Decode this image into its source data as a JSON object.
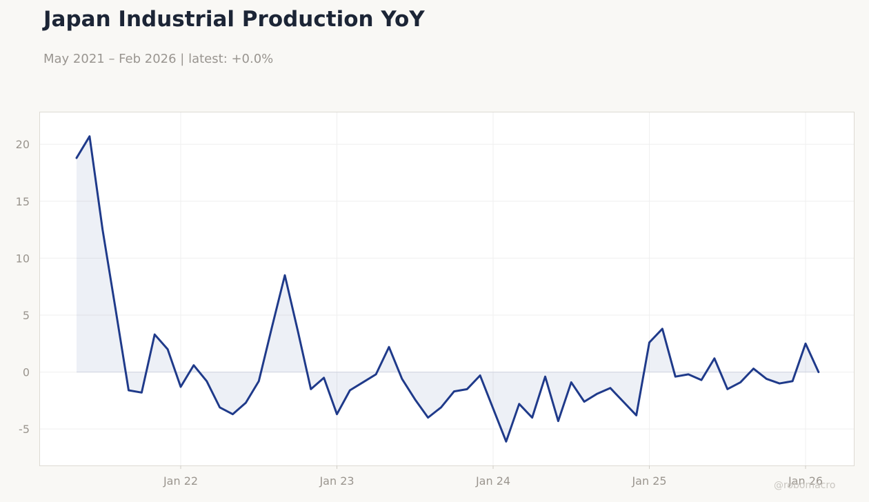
{
  "header": {
    "title": "Japan Industrial Production YoY",
    "subtitle": "May 2021 – Feb 2026 | latest: +0.0%"
  },
  "watermark": "@robomacro",
  "colors": {
    "line": "#1f3a8a",
    "fill": "#1f3a8a",
    "background": "#f9f8f5",
    "plot_background": "#ffffff",
    "grid": "#efefef",
    "tick_label": "#9a958e"
  },
  "chart_data": {
    "type": "area",
    "title": "Japan Industrial Production YoY",
    "subtitle": "May 2021 – Feb 2026 | latest: +0.0%",
    "xlabel": "",
    "ylabel": "",
    "ylim": [
      -8.2,
      22.8
    ],
    "grid": true,
    "x_ticks": [
      {
        "date": "2022-01",
        "label": "Jan 22"
      },
      {
        "date": "2023-01",
        "label": "Jan 23"
      },
      {
        "date": "2024-01",
        "label": "Jan 24"
      },
      {
        "date": "2025-01",
        "label": "Jan 25"
      },
      {
        "date": "2026-01",
        "label": "Jan 26"
      }
    ],
    "y_ticks": [
      {
        "value": 20,
        "label": "20"
      },
      {
        "value": 15,
        "label": "15"
      },
      {
        "value": 10,
        "label": "10"
      },
      {
        "value": 5,
        "label": "5"
      },
      {
        "value": 0,
        "label": "0"
      },
      {
        "value": -5,
        "label": "-5"
      }
    ],
    "x": [
      "2021-05",
      "2021-06",
      "2021-07",
      "2021-08",
      "2021-09",
      "2021-10",
      "2021-11",
      "2021-12",
      "2022-01",
      "2022-02",
      "2022-03",
      "2022-04",
      "2022-05",
      "2022-06",
      "2022-07",
      "2022-08",
      "2022-09",
      "2022-10",
      "2022-11",
      "2022-12",
      "2023-01",
      "2023-02",
      "2023-03",
      "2023-04",
      "2023-05",
      "2023-06",
      "2023-07",
      "2023-08",
      "2023-09",
      "2023-10",
      "2023-11",
      "2023-12",
      "2024-01",
      "2024-02",
      "2024-03",
      "2024-04",
      "2024-05",
      "2024-06",
      "2024-07",
      "2024-08",
      "2024-09",
      "2024-10",
      "2024-11",
      "2024-12",
      "2025-01",
      "2025-02",
      "2025-03",
      "2025-04",
      "2025-05",
      "2025-06",
      "2025-07",
      "2025-08",
      "2025-09",
      "2025-10",
      "2025-11",
      "2025-12",
      "2026-01",
      "2026-02"
    ],
    "series": [
      {
        "values": [
          18.8,
          20.7,
          12.5,
          5.5,
          -1.6,
          -1.8,
          3.3,
          2.0,
          -1.3,
          0.6,
          -0.8,
          -3.1,
          -3.7,
          -2.7,
          -0.8,
          3.9,
          8.5,
          3.6,
          -1.5,
          -0.5,
          -3.7,
          -1.6,
          -0.9,
          -0.2,
          2.2,
          -0.6,
          -2.4,
          -4.0,
          -3.1,
          -1.7,
          -1.5,
          -0.3,
          -3.2,
          -6.1,
          -2.8,
          -4.0,
          -0.4,
          -4.3,
          -0.9,
          -2.6,
          -1.9,
          -1.4,
          -2.6,
          -3.8,
          2.6,
          3.8,
          -0.4,
          -0.2,
          -0.7,
          1.2,
          -1.5,
          -0.9,
          0.3,
          -0.6,
          -1.0,
          -0.8,
          2.5,
          0.0
        ]
      }
    ]
  }
}
